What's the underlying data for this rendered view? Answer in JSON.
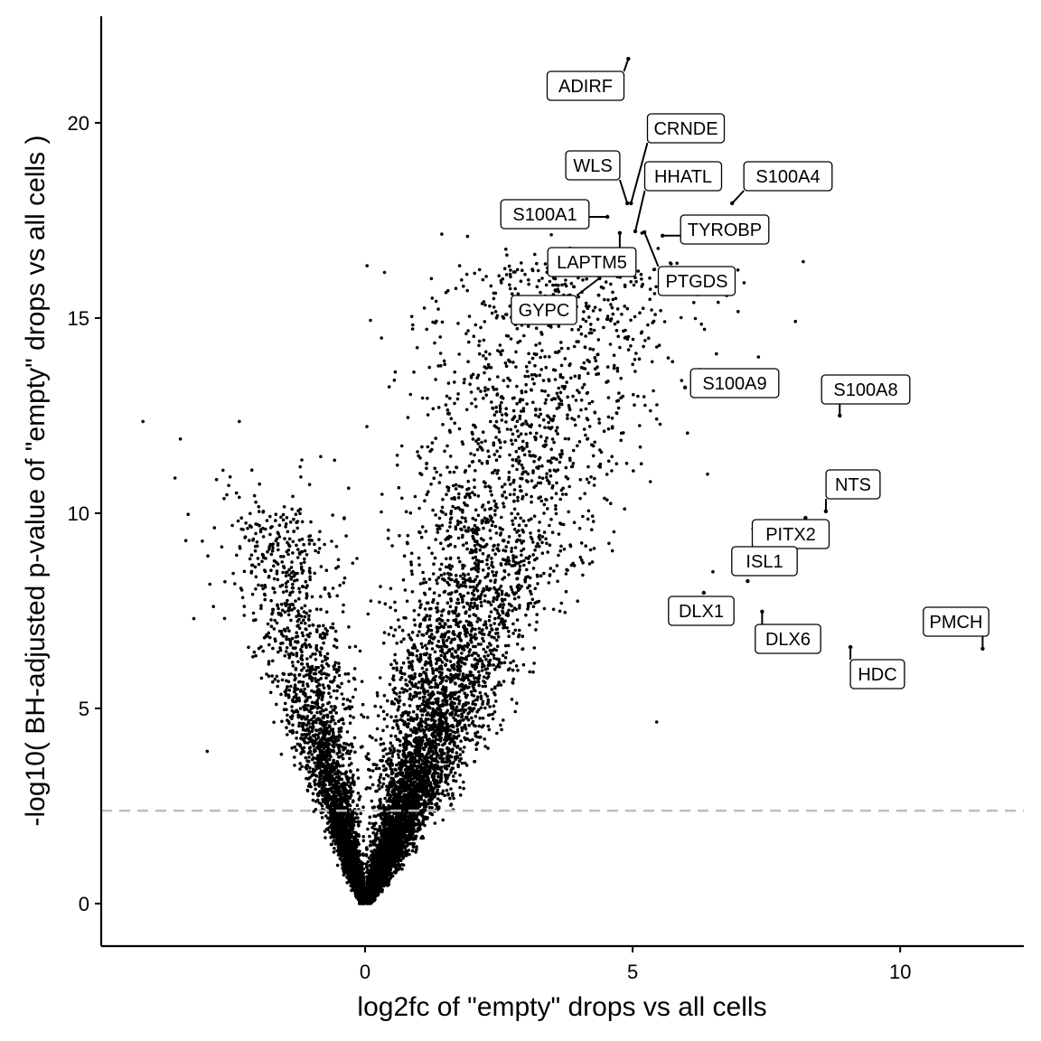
{
  "chart_data": {
    "type": "scatter",
    "title": "",
    "xlabel": "log2fc of \"empty\" drops vs all cells",
    "ylabel": "-log10( BH-adjusted p-value of \"empty\" drops vs all cells )",
    "xlim": [
      -4.93,
      12.31
    ],
    "ylim": [
      -1.09,
      22.73
    ],
    "x_ticks": [
      0,
      5,
      10
    ],
    "y_ticks": [
      0,
      5,
      10,
      15,
      20
    ],
    "x_tick_labels": [
      "0",
      "5",
      "10"
    ],
    "y_tick_labels": [
      "0",
      "5",
      "10",
      "15",
      "20"
    ],
    "grid": false,
    "threshold_line": {
      "y": 2.38,
      "style": "dashed",
      "color": "#bebebe"
    },
    "point_color": "#000000",
    "labeled_genes": [
      {
        "gene": "ADIRF",
        "x": 4.92,
        "y": 21.64
      },
      {
        "gene": "CRNDE",
        "x": 4.97,
        "y": 17.94
      },
      {
        "gene": "WLS",
        "x": 4.9,
        "y": 17.94
      },
      {
        "gene": "HHATL",
        "x": 5.05,
        "y": 17.22
      },
      {
        "gene": "S100A4",
        "x": 6.86,
        "y": 17.94
      },
      {
        "gene": "S100A1",
        "x": 4.53,
        "y": 17.59
      },
      {
        "gene": "TYROBP",
        "x": 5.56,
        "y": 17.11
      },
      {
        "gene": "PTGDS",
        "x": 5.22,
        "y": 17.2
      },
      {
        "gene": "LAPTM5",
        "x": 4.76,
        "y": 17.18
      },
      {
        "gene": "GYPC",
        "x": 4.38,
        "y": 16.02
      },
      {
        "gene": "S100A9",
        "x": 5.98,
        "y": 13.22
      },
      {
        "gene": "S100A8",
        "x": 8.87,
        "y": 12.5
      },
      {
        "gene": "NTS",
        "x": 8.61,
        "y": 10.05
      },
      {
        "gene": "PITX2",
        "x": 8.23,
        "y": 9.88
      },
      {
        "gene": "ISL1",
        "x": 7.15,
        "y": 8.26
      },
      {
        "gene": "DLX1",
        "x": 6.33,
        "y": 7.96
      },
      {
        "gene": "DLX6",
        "x": 7.42,
        "y": 7.48
      },
      {
        "gene": "HDC",
        "x": 9.07,
        "y": 6.57
      },
      {
        "gene": "PMCH",
        "x": 11.54,
        "y": 6.53
      }
    ],
    "other_outliers": [
      {
        "x": -4.15,
        "y": 12.35
      },
      {
        "x": -3.45,
        "y": 11.9
      },
      {
        "x": -2.35,
        "y": 12.35
      },
      {
        "x": -3.55,
        "y": 10.9
      },
      {
        "x": -3.35,
        "y": 9.3
      },
      {
        "x": -3.2,
        "y": 7.3
      },
      {
        "x": -2.95,
        "y": 3.9
      },
      {
        "x": 6.6,
        "y": 15.4
      },
      {
        "x": 7.35,
        "y": 14.0
      },
      {
        "x": 7.6,
        "y": 8.9
      },
      {
        "x": 6.5,
        "y": 8.5
      },
      {
        "x": 5.45,
        "y": 4.65
      },
      {
        "x": 7.25,
        "y": 9.6
      },
      {
        "x": 6.4,
        "y": 11.0
      }
    ],
    "background_cloud": {
      "n_positive": 6500,
      "n_negative": 3200
    }
  }
}
